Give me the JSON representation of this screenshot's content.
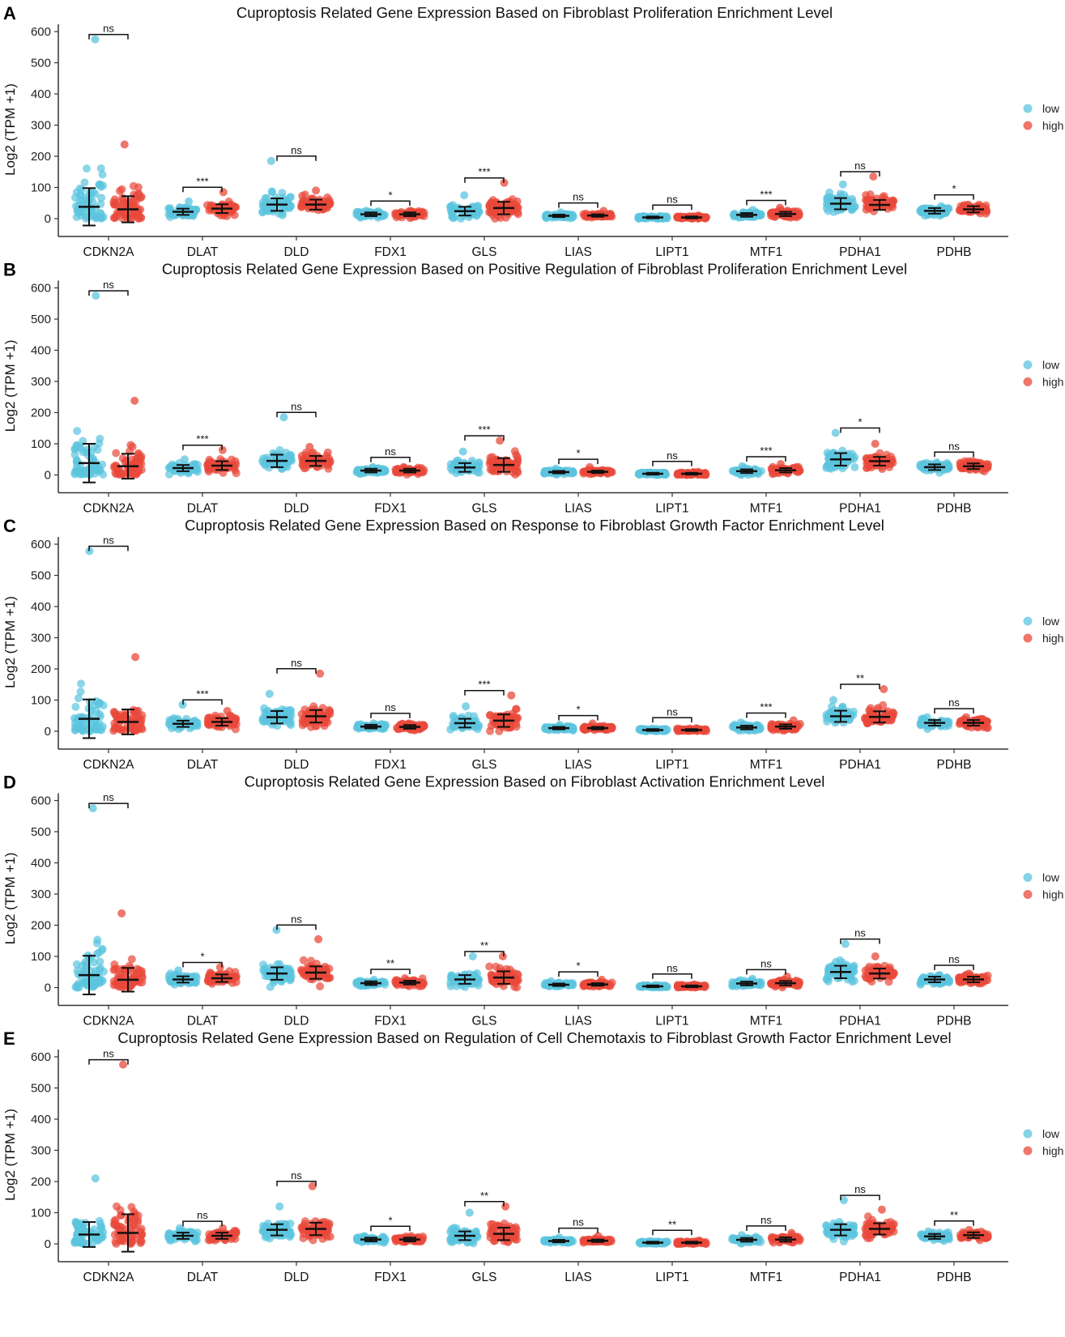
{
  "colors": {
    "low": "#5bc4de",
    "high": "#e8483a",
    "axis": "#333333",
    "summary": "#111111"
  },
  "chart_data": [
    {
      "type": "scatter",
      "panel_label": "A",
      "title": "Cuproptosis Related Gene Expression Based on Fibroblast Proliferation Enrichment Level",
      "ylabel": "Log2 (TPM +1)",
      "yticks": [
        0,
        100,
        200,
        300,
        400,
        500,
        600
      ],
      "ylim": [
        -40,
        630
      ],
      "legend": {
        "position": "right",
        "entries": [
          "low",
          "high"
        ]
      },
      "categories": [
        "CDKN2A",
        "DLAT",
        "DLD",
        "FDX1",
        "GLS",
        "LIAS",
        "LIPT1",
        "MTF1",
        "PDHA1",
        "PDHB"
      ],
      "series": [
        {
          "name": "low",
          "mean": [
            38,
            22,
            45,
            14,
            24,
            9,
            4,
            12,
            48,
            25
          ],
          "sd": [
            60,
            10,
            20,
            6,
            14,
            4,
            3,
            6,
            18,
            9
          ],
          "max": [
            575,
            55,
            185,
            25,
            75,
            20,
            8,
            28,
            110,
            40
          ]
        },
        {
          "name": "high",
          "mean": [
            30,
            32,
            45,
            14,
            34,
            10,
            4,
            15,
            44,
            30
          ],
          "sd": [
            42,
            14,
            16,
            6,
            20,
            4,
            3,
            7,
            16,
            10
          ],
          "max": [
            238,
            85,
            90,
            25,
            115,
            25,
            10,
            35,
            135,
            45
          ]
        }
      ],
      "significance": [
        "ns",
        "***",
        "ns",
        "*",
        "***",
        "ns",
        "ns",
        "***",
        "ns",
        "*"
      ]
    },
    {
      "type": "scatter",
      "panel_label": "B",
      "title": "Cuproptosis Related Gene Expression Based on Positive Regulation of Fibroblast Proliferation Enrichment Level",
      "ylabel": "Log2 (TPM +1)",
      "yticks": [
        0,
        100,
        200,
        300,
        400,
        500,
        600
      ],
      "ylim": [
        -40,
        630
      ],
      "legend": {
        "position": "right",
        "entries": [
          "low",
          "high"
        ]
      },
      "categories": [
        "CDKN2A",
        "DLAT",
        "DLD",
        "FDX1",
        "GLS",
        "LIAS",
        "LIPT1",
        "MTF1",
        "PDHA1",
        "PDHB"
      ],
      "series": [
        {
          "name": "low",
          "mean": [
            38,
            22,
            45,
            14,
            24,
            9,
            4,
            12,
            50,
            25
          ],
          "sd": [
            62,
            10,
            20,
            6,
            14,
            4,
            3,
            6,
            20,
            9
          ],
          "max": [
            575,
            50,
            185,
            25,
            75,
            20,
            8,
            28,
            135,
            40
          ]
        },
        {
          "name": "high",
          "mean": [
            28,
            30,
            45,
            14,
            32,
            10,
            4,
            15,
            44,
            28
          ],
          "sd": [
            40,
            14,
            16,
            6,
            22,
            4,
            3,
            7,
            14,
            9
          ],
          "max": [
            238,
            80,
            90,
            25,
            110,
            25,
            10,
            35,
            100,
            45
          ]
        }
      ],
      "significance": [
        "ns",
        "***",
        "ns",
        "ns",
        "***",
        "*",
        "ns",
        "***",
        "*",
        "ns"
      ]
    },
    {
      "type": "scatter",
      "panel_label": "C",
      "title": "Cuproptosis Related Gene Expression Based on Response to Fibroblast Growth Factor Enrichment Level",
      "ylabel": "Log2 (TPM +1)",
      "yticks": [
        0,
        100,
        200,
        300,
        400,
        500,
        600
      ],
      "ylim": [
        -40,
        630
      ],
      "legend": {
        "position": "right",
        "entries": [
          "low",
          "high"
        ]
      },
      "categories": [
        "CDKN2A",
        "DLAT",
        "DLD",
        "FDX1",
        "GLS",
        "LIAS",
        "LIPT1",
        "MTF1",
        "PDHA1",
        "PDHB"
      ],
      "series": [
        {
          "name": "low",
          "mean": [
            40,
            24,
            45,
            15,
            26,
            10,
            4,
            12,
            48,
            27
          ],
          "sd": [
            62,
            10,
            20,
            6,
            14,
            4,
            3,
            6,
            18,
            9
          ],
          "max": [
            578,
            85,
            120,
            25,
            80,
            20,
            8,
            28,
            100,
            45
          ]
        },
        {
          "name": "high",
          "mean": [
            30,
            30,
            48,
            14,
            34,
            10,
            4,
            15,
            46,
            27
          ],
          "sd": [
            40,
            12,
            20,
            6,
            20,
            4,
            3,
            7,
            18,
            9
          ],
          "max": [
            238,
            65,
            185,
            25,
            115,
            25,
            10,
            35,
            135,
            45
          ]
        }
      ],
      "significance": [
        "ns",
        "***",
        "ns",
        "ns",
        "***",
        "*",
        "ns",
        "***",
        "**",
        "ns"
      ]
    },
    {
      "type": "scatter",
      "panel_label": "D",
      "title": "Cuproptosis Related Gene Expression Based on Fibroblast Activation Enrichment Level",
      "ylabel": "Log2 (TPM +1)",
      "yticks": [
        0,
        100,
        200,
        300,
        400,
        500,
        600
      ],
      "ylim": [
        -40,
        630
      ],
      "legend": {
        "position": "right",
        "entries": [
          "low",
          "high"
        ]
      },
      "categories": [
        "CDKN2A",
        "DLAT",
        "DLD",
        "FDX1",
        "GLS",
        "LIAS",
        "LIPT1",
        "MTF1",
        "PDHA1",
        "PDHB"
      ],
      "series": [
        {
          "name": "low",
          "mean": [
            40,
            26,
            45,
            14,
            26,
            9,
            4,
            13,
            50,
            26
          ],
          "sd": [
            62,
            10,
            20,
            6,
            14,
            4,
            3,
            6,
            20,
            9
          ],
          "max": [
            575,
            55,
            185,
            25,
            100,
            20,
            8,
            28,
            140,
            40
          ]
        },
        {
          "name": "high",
          "mean": [
            25,
            30,
            48,
            16,
            32,
            10,
            4,
            14,
            45,
            26
          ],
          "sd": [
            38,
            12,
            20,
            6,
            20,
            4,
            3,
            7,
            16,
            9
          ],
          "max": [
            238,
            65,
            155,
            30,
            100,
            25,
            10,
            35,
            100,
            45
          ]
        }
      ],
      "significance": [
        "ns",
        "*",
        "ns",
        "**",
        "**",
        "*",
        "ns",
        "ns",
        "ns",
        "ns"
      ]
    },
    {
      "type": "scatter",
      "panel_label": "E",
      "title": "Cuproptosis Related Gene Expression Based on Regulation of Cell Chemotaxis to Fibroblast Growth Factor Enrichment Level",
      "ylabel": "Log2 (TPM +1)",
      "yticks": [
        0,
        100,
        200,
        300,
        400,
        500,
        600
      ],
      "ylim": [
        -40,
        630
      ],
      "legend": {
        "position": "right",
        "entries": [
          "low",
          "high"
        ]
      },
      "categories": [
        "CDKN2A",
        "DLAT",
        "DLD",
        "FDX1",
        "GLS",
        "LIAS",
        "LIPT1",
        "MTF1",
        "PDHA1",
        "PDHB"
      ],
      "series": [
        {
          "name": "low",
          "mean": [
            30,
            26,
            45,
            14,
            26,
            9,
            4,
            13,
            45,
            24
          ],
          "sd": [
            40,
            10,
            18,
            6,
            14,
            4,
            3,
            6,
            18,
            8
          ],
          "max": [
            210,
            50,
            120,
            25,
            100,
            20,
            8,
            28,
            140,
            40
          ]
        },
        {
          "name": "high",
          "mean": [
            35,
            26,
            48,
            14,
            32,
            10,
            4,
            14,
            48,
            28
          ],
          "sd": [
            60,
            10,
            20,
            6,
            20,
            4,
            3,
            7,
            18,
            9
          ],
          "max": [
            575,
            50,
            185,
            25,
            120,
            25,
            10,
            35,
            110,
            45
          ]
        }
      ],
      "significance": [
        "ns",
        "ns",
        "ns",
        "*",
        "**",
        "ns",
        "**",
        "ns",
        "ns",
        "**"
      ]
    }
  ]
}
